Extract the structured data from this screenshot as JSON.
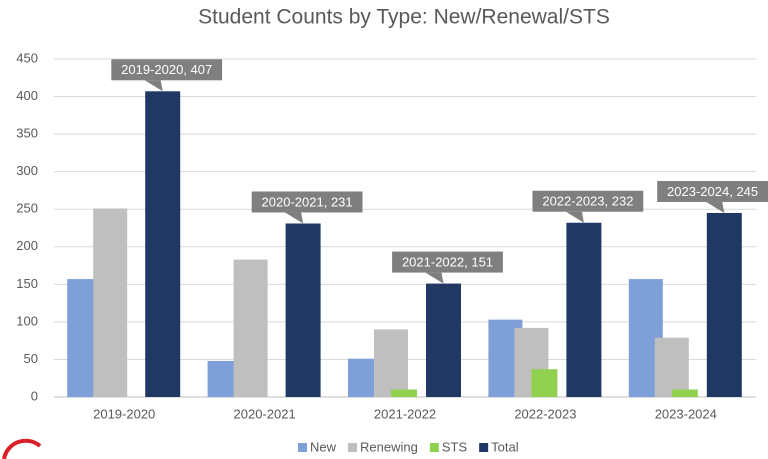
{
  "chart_data": {
    "type": "bar",
    "title": "Student Counts by Type:  New/Renewal/STS",
    "categories": [
      "2019-2020",
      "2020-2021",
      "2021-2022",
      "2022-2023",
      "2023-2024"
    ],
    "series": [
      {
        "name": "New",
        "color": "#7f9fd8",
        "values": [
          157,
          48,
          51,
          103,
          157
        ]
      },
      {
        "name": "Renewing",
        "color": "#bfbfbf",
        "values": [
          251,
          183,
          90,
          92,
          79
        ]
      },
      {
        "name": "STS",
        "color": "#92d050",
        "values": [
          0,
          0,
          10,
          37,
          10
        ]
      },
      {
        "name": "Total",
        "color": "#1f3864",
        "values": [
          407,
          231,
          151,
          232,
          245
        ],
        "value_labels": [
          "2019-2020, 407",
          "2020-2021, 231",
          "2021-2022, 151",
          "2022-2023, 232",
          "2023-2024, 245"
        ]
      }
    ],
    "ylim": [
      0,
      450
    ],
    "yticks": [
      0,
      50,
      100,
      150,
      200,
      250,
      300,
      350,
      400,
      450
    ],
    "grid": true,
    "legend": "bottom"
  }
}
